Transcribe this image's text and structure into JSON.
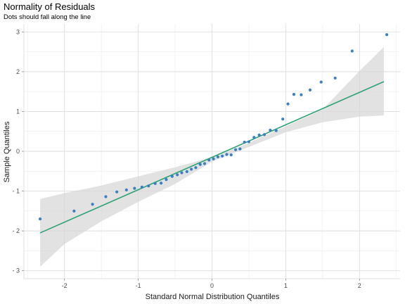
{
  "chart_data": {
    "type": "scatter",
    "title": "Normality of Residuals",
    "subtitle": "Dots should fall along the line",
    "xlabel": "Standard Normal Distribution Quantiles",
    "ylabel": "Sample Quantiles",
    "xlim": [
      -2.55,
      2.55
    ],
    "ylim": [
      -3.2,
      3.2
    ],
    "x_ticks": [
      -2,
      -1,
      0,
      1,
      2
    ],
    "x_tick_labels": [
      "-2",
      "-1",
      "0",
      "1",
      "2"
    ],
    "y_ticks": [
      -3,
      -2,
      -1,
      0,
      1,
      2,
      3
    ],
    "y_tick_labels": [
      "- 3",
      "- 2",
      "- 1",
      "0",
      "1",
      "2",
      "3"
    ],
    "grid": true,
    "legend": "none",
    "colors": {
      "points": "#3a7fc1",
      "reference_line": "#2ca273",
      "confidence_band": "#d6d6d6"
    },
    "reference_line": {
      "x": [
        -2.33,
        2.33
      ],
      "y": [
        -2.05,
        1.75
      ]
    },
    "confidence_band": {
      "x": [
        -2.33,
        -2.0,
        -1.5,
        -1.0,
        -0.5,
        0.0,
        0.5,
        1.0,
        1.5,
        2.0,
        2.33
      ],
      "lower": [
        -2.9,
        -2.33,
        -1.76,
        -1.27,
        -0.82,
        -0.26,
        0.11,
        0.48,
        0.73,
        0.87,
        0.9
      ],
      "upper": [
        -1.2,
        -1.05,
        -0.86,
        -0.63,
        -0.4,
        -0.15,
        0.21,
        0.63,
        1.05,
        2.02,
        2.62
      ]
    },
    "points": [
      {
        "x": -2.33,
        "y": -1.7
      },
      {
        "x": -1.87,
        "y": -1.5
      },
      {
        "x": -1.62,
        "y": -1.33
      },
      {
        "x": -1.44,
        "y": -1.14
      },
      {
        "x": -1.29,
        "y": -1.02
      },
      {
        "x": -1.16,
        "y": -0.97
      },
      {
        "x": -1.05,
        "y": -0.93
      },
      {
        "x": -0.95,
        "y": -0.9
      },
      {
        "x": -0.86,
        "y": -0.87
      },
      {
        "x": -0.77,
        "y": -0.81
      },
      {
        "x": -0.69,
        "y": -0.8
      },
      {
        "x": -0.62,
        "y": -0.71
      },
      {
        "x": -0.54,
        "y": -0.63
      },
      {
        "x": -0.47,
        "y": -0.59
      },
      {
        "x": -0.41,
        "y": -0.54
      },
      {
        "x": -0.34,
        "y": -0.51
      },
      {
        "x": -0.28,
        "y": -0.45
      },
      {
        "x": -0.22,
        "y": -0.41
      },
      {
        "x": -0.16,
        "y": -0.33
      },
      {
        "x": -0.1,
        "y": -0.31
      },
      {
        "x": -0.04,
        "y": -0.22
      },
      {
        "x": 0.02,
        "y": -0.19
      },
      {
        "x": 0.08,
        "y": -0.14
      },
      {
        "x": 0.14,
        "y": -0.12
      },
      {
        "x": 0.2,
        "y": -0.08
      },
      {
        "x": 0.26,
        "y": -0.09
      },
      {
        "x": 0.32,
        "y": 0.04
      },
      {
        "x": 0.38,
        "y": 0.06
      },
      {
        "x": 0.44,
        "y": 0.23
      },
      {
        "x": 0.5,
        "y": 0.24
      },
      {
        "x": 0.57,
        "y": 0.35
      },
      {
        "x": 0.64,
        "y": 0.41
      },
      {
        "x": 0.71,
        "y": 0.42
      },
      {
        "x": 0.79,
        "y": 0.53
      },
      {
        "x": 0.87,
        "y": 0.52
      },
      {
        "x": 0.96,
        "y": 0.81
      },
      {
        "x": 1.03,
        "y": 1.19
      },
      {
        "x": 1.11,
        "y": 1.43
      },
      {
        "x": 1.21,
        "y": 1.42
      },
      {
        "x": 1.33,
        "y": 1.54
      },
      {
        "x": 1.48,
        "y": 1.74
      },
      {
        "x": 1.67,
        "y": 1.84
      },
      {
        "x": 1.9,
        "y": 2.52
      },
      {
        "x": 2.37,
        "y": 2.93
      }
    ]
  }
}
